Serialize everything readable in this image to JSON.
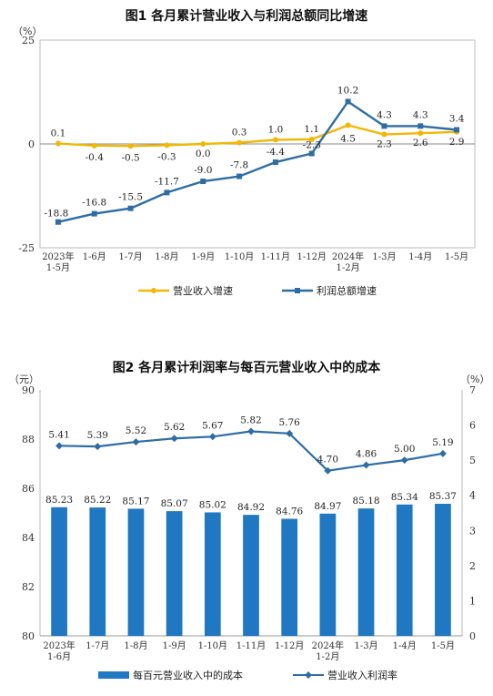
{
  "chart_data": [
    {
      "type": "line",
      "title": "图1  各月累计营业收入与利润总额同比增速",
      "yunit": "（%）",
      "ylim": [
        -25,
        25
      ],
      "yticks": [
        25,
        0,
        -25
      ],
      "categories": [
        [
          "2023年",
          "1-5月"
        ],
        [
          "1-6月"
        ],
        [
          "1-7月"
        ],
        [
          "1-8月"
        ],
        [
          "1-9月"
        ],
        [
          "1-10月"
        ],
        [
          "1-11月"
        ],
        [
          "1-12月"
        ],
        [
          "2024年",
          "1-2月"
        ],
        [
          "1-3月"
        ],
        [
          "1-4月"
        ],
        [
          "1-5月"
        ]
      ],
      "series": [
        {
          "name": "营业收入增速",
          "color": "#F2B705",
          "values": [
            0.1,
            -0.4,
            -0.5,
            -0.3,
            0.0,
            0.3,
            1.0,
            1.1,
            4.5,
            2.3,
            2.6,
            2.9
          ],
          "labels": [
            "0.1",
            "-0.4",
            "-0.5",
            "-0.3",
            "0.0",
            "0.3",
            "1.0",
            "1.1",
            "4.5",
            "2.3",
            "2.6",
            "2.9"
          ]
        },
        {
          "name": "利润总额增速",
          "color": "#2E6DA4",
          "values": [
            -18.8,
            -16.8,
            -15.5,
            -11.7,
            -9.0,
            -7.8,
            -4.4,
            -2.3,
            10.2,
            4.3,
            4.3,
            3.4
          ],
          "labels": [
            "-18.8",
            "-16.8",
            "-15.5",
            "-11.7",
            "-9.0",
            "-7.8",
            "-4.4",
            "-2.3",
            "10.2",
            "4.3",
            "4.3",
            "3.4"
          ]
        }
      ],
      "legend": "bottom",
      "grid": false
    },
    {
      "type": "bar+line",
      "title": "图2  各月累计利润率与每百元营业收入中的成本",
      "yunit_left": "（元）",
      "yunit_right": "（%）",
      "ylim_left": [
        80,
        90
      ],
      "yticks_left": [
        90,
        88,
        86,
        84,
        82,
        80
      ],
      "ylim_right": [
        0,
        7
      ],
      "yticks_right": [
        7,
        6,
        5,
        4,
        3,
        2,
        1,
        0
      ],
      "categories": [
        [
          "2023年",
          "1-6月"
        ],
        [
          "1-7月"
        ],
        [
          "1-8月"
        ],
        [
          "1-9月"
        ],
        [
          "1-10月"
        ],
        [
          "1-11月"
        ],
        [
          "1-12月"
        ],
        [
          "2024年",
          "1-2月"
        ],
        [
          "1-3月"
        ],
        [
          "1-4月"
        ],
        [
          "1-5月"
        ]
      ],
      "bars": {
        "name": "每百元营业收入中的成本",
        "color": "#1F78C1",
        "values": [
          85.23,
          85.22,
          85.17,
          85.07,
          85.02,
          84.92,
          84.76,
          84.97,
          85.18,
          85.34,
          85.37
        ],
        "labels": [
          "85.23",
          "85.22",
          "85.17",
          "85.07",
          "85.02",
          "84.92",
          "84.76",
          "84.97",
          "85.18",
          "85.34",
          "85.37"
        ]
      },
      "line": {
        "name": "营业收入利润率",
        "color": "#2E6DA4",
        "values": [
          5.41,
          5.39,
          5.52,
          5.62,
          5.67,
          5.82,
          5.76,
          4.7,
          4.86,
          5.0,
          5.19
        ],
        "labels": [
          "5.41",
          "5.39",
          "5.52",
          "5.62",
          "5.67",
          "5.82",
          "5.76",
          "4.70",
          "4.86",
          "5.00",
          "5.19"
        ]
      },
      "legend": "bottom",
      "grid": false
    }
  ]
}
